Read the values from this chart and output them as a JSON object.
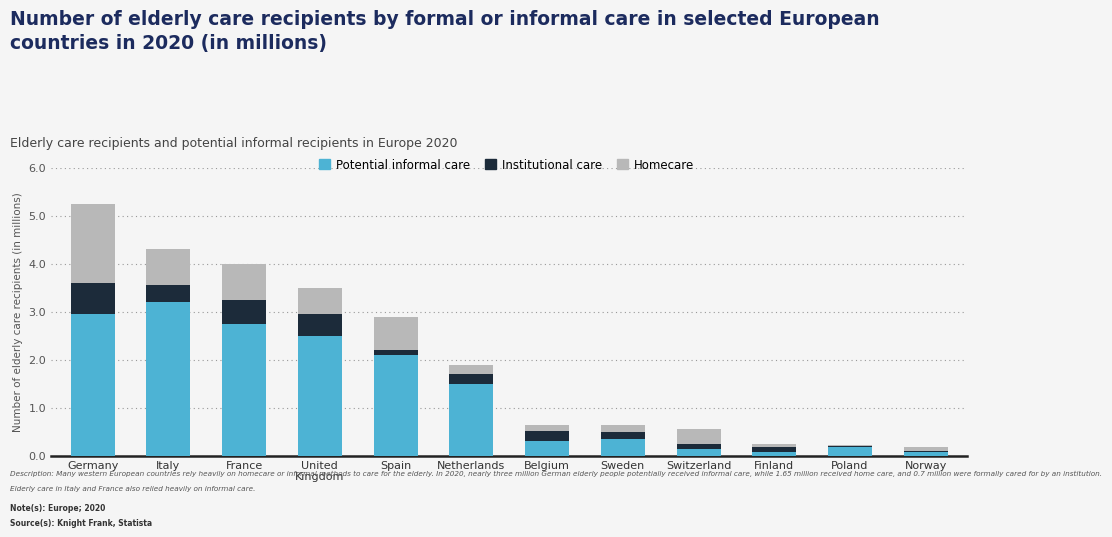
{
  "title": "Number of elderly care recipients by formal or informal care in selected European\ncountries in 2020 (in millions)",
  "subtitle": "Elderly care recipients and potential informal recipients in Europe 2020",
  "ylabel": "Number of elderly care recipients (in millions)",
  "categories": [
    "Germany",
    "Italy",
    "France",
    "United\nKingdom",
    "Spain",
    "Netherlands",
    "Belgium",
    "Sweden",
    "Switzerland",
    "Finland",
    "Poland",
    "Norway"
  ],
  "potential_informal": [
    2.95,
    3.2,
    2.75,
    2.5,
    2.1,
    1.5,
    0.3,
    0.35,
    0.15,
    0.08,
    0.18,
    0.08
  ],
  "institutional": [
    0.65,
    0.35,
    0.5,
    0.45,
    0.1,
    0.2,
    0.22,
    0.15,
    0.1,
    0.1,
    0.02,
    0.02
  ],
  "homecare": [
    1.65,
    0.75,
    0.75,
    0.55,
    0.7,
    0.2,
    0.13,
    0.15,
    0.3,
    0.07,
    0.02,
    0.08
  ],
  "color_potential": "#4DB3D4",
  "color_institutional": "#1C2B3A",
  "color_homecare": "#B8B8B8",
  "ylim": [
    0,
    6.0
  ],
  "yticks": [
    0.0,
    1.0,
    2.0,
    3.0,
    4.0,
    5.0,
    6.0
  ],
  "legend_labels": [
    "Potential informal care",
    "Institutional care",
    "Homecare"
  ],
  "footnote1": "Description: Many western European countries rely heavily on homecare or informal methods to care for the elderly. In 2020, nearly three million German elderly people potentially received informal care, while 1.65 million received home care, and 0.7 million were formally cared for by an institution.",
  "footnote2": "Elderly care in Italy and France also relied heavily on informal care.",
  "footnote3": "Note(s): Europe; 2020",
  "footnote4": "Source(s): Knight Frank, Statista",
  "background_color": "#F5F5F5",
  "title_color": "#1C2B5E",
  "title_fontsize": 13.5,
  "subtitle_fontsize": 9.0
}
